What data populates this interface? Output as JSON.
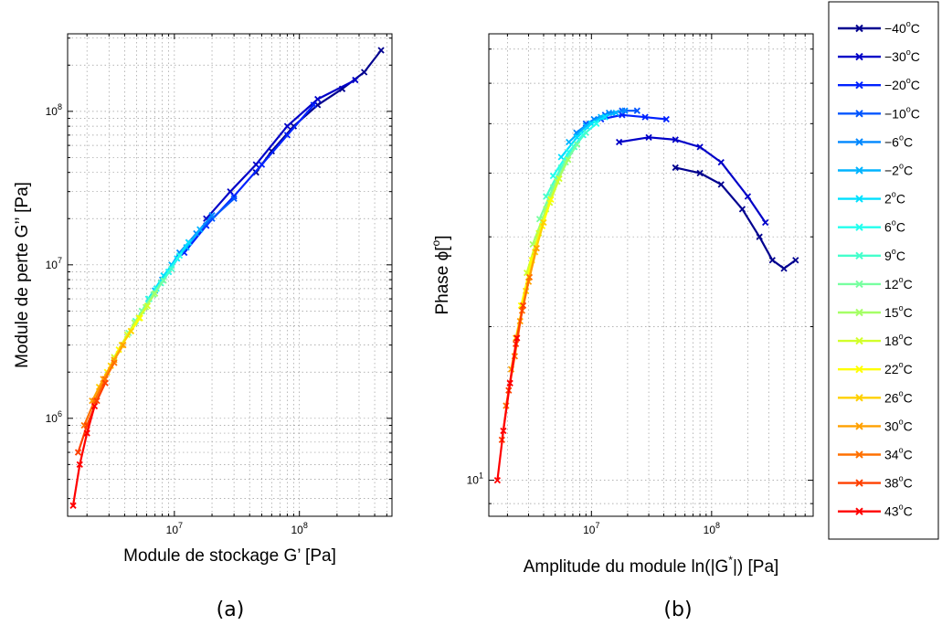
{
  "figure": {
    "caption_a": "(a)",
    "caption_b": "(b)"
  },
  "legend": {
    "entries": [
      {
        "label": "−40°C",
        "base": "−40",
        "unit": "C",
        "color": "#00008f"
      },
      {
        "label": "−30°C",
        "base": "−30",
        "unit": "C",
        "color": "#0000c8"
      },
      {
        "label": "−20°C",
        "base": "−20",
        "unit": "C",
        "color": "#0022ff"
      },
      {
        "label": "−10°C",
        "base": "−10",
        "unit": "C",
        "color": "#0055ff"
      },
      {
        "label": "−6°C",
        "base": "−6",
        "unit": "C",
        "color": "#0088ff"
      },
      {
        "label": "−2°C",
        "base": "−2",
        "unit": "C",
        "color": "#00b4ff"
      },
      {
        "label": "2°C",
        "base": "2",
        "unit": "C",
        "color": "#00e0ff"
      },
      {
        "label": "6°C",
        "base": "6",
        "unit": "C",
        "color": "#22ffee"
      },
      {
        "label": "9°C",
        "base": "9",
        "unit": "C",
        "color": "#44ffcc"
      },
      {
        "label": "12°C",
        "base": "12",
        "unit": "C",
        "color": "#77ffa0"
      },
      {
        "label": "15°C",
        "base": "15",
        "unit": "C",
        "color": "#a5ff66"
      },
      {
        "label": "18°C",
        "base": "18",
        "unit": "C",
        "color": "#d2ff2a"
      },
      {
        "label": "22°C",
        "base": "22",
        "unit": "C",
        "color": "#ffff00"
      },
      {
        "label": "26°C",
        "base": "26",
        "unit": "C",
        "color": "#ffd000"
      },
      {
        "label": "30°C",
        "base": "30",
        "unit": "C",
        "color": "#ffa000"
      },
      {
        "label": "34°C",
        "base": "34",
        "unit": "C",
        "color": "#ff7000"
      },
      {
        "label": "38°C",
        "base": "38",
        "unit": "C",
        "color": "#ff4000"
      },
      {
        "label": "43°C",
        "base": "43",
        "unit": "C",
        "color": "#ff0000"
      }
    ]
  },
  "chart_data": [
    {
      "type": "line",
      "panel": "(a)",
      "xlabel": "Module de stockage G’ [Pa]",
      "ylabel": "Module de perte G’’ [Pa]",
      "xscale": "log",
      "yscale": "log",
      "xlim": [
        1400000,
        550000000
      ],
      "ylim": [
        230000,
        320000000
      ],
      "xticks": [
        {
          "value": 10000000,
          "label": "10",
          "exp": "7"
        },
        {
          "value": 100000000,
          "label": "10",
          "exp": "8"
        }
      ],
      "yticks": [
        {
          "value": 1000000,
          "label": "10",
          "exp": "6"
        },
        {
          "value": 10000000,
          "label": "10",
          "exp": "7"
        },
        {
          "value": 100000000,
          "label": "10",
          "exp": "8"
        }
      ],
      "grid": true,
      "series": [
        {
          "name": "−40°C",
          "x": [
            45000000,
            60000000,
            90000000,
            140000000,
            220000000,
            330000000,
            450000000
          ],
          "y": [
            40000000,
            55000000,
            80000000,
            110000000,
            140000000,
            180000000,
            250000000
          ]
        },
        {
          "name": "−30°C",
          "x": [
            18000000,
            28000000,
            45000000,
            80000000,
            140000000,
            280000000
          ],
          "y": [
            20000000,
            30000000,
            45000000,
            80000000,
            120000000,
            160000000
          ]
        },
        {
          "name": "−20°C",
          "x": [
            12000000,
            18000000,
            30000000,
            50000000,
            80000000,
            130000000
          ],
          "y": [
            12000000,
            18000000,
            28000000,
            45000000,
            70000000,
            110000000
          ]
        },
        {
          "name": "−10°C",
          "x": [
            9000000,
            13000000,
            20000000,
            30000000
          ],
          "y": [
            9000000,
            14000000,
            20000000,
            27000000
          ]
        },
        {
          "name": "−6°C",
          "x": [
            8000000,
            11000000,
            15000000,
            20000000
          ],
          "y": [
            8000000,
            12000000,
            16000000,
            21000000
          ]
        },
        {
          "name": "−2°C",
          "x": [
            7000000,
            9500000,
            12500000,
            16000000
          ],
          "y": [
            6800000,
            10000000,
            13000000,
            17000000
          ]
        },
        {
          "name": "2°C",
          "x": [
            6200000,
            8200000,
            10500000,
            13000000
          ],
          "y": [
            6000000,
            8500000,
            11000000,
            14000000
          ]
        },
        {
          "name": "6°C",
          "x": [
            5500000,
            7200000,
            9000000,
            11000000
          ],
          "y": [
            5000000,
            7000000,
            9000000,
            11500000
          ]
        },
        {
          "name": "9°C",
          "x": [
            4900000,
            6300000,
            7800000,
            9500000
          ],
          "y": [
            4300000,
            6000000,
            7600000,
            9400000
          ]
        },
        {
          "name": "12°C",
          "x": [
            4300000,
            5500000,
            6800000,
            8200000
          ],
          "y": [
            3600000,
            5000000,
            6400000,
            7900000
          ]
        },
        {
          "name": "15°C",
          "x": [
            3800000,
            4800000,
            5900000,
            7000000
          ],
          "y": [
            3000000,
            4200000,
            5300000,
            6500000
          ]
        },
        {
          "name": "18°C",
          "x": [
            3300000,
            4200000,
            5200000,
            6100000
          ],
          "y": [
            2500000,
            3500000,
            4500000,
            5400000
          ]
        },
        {
          "name": "22°C",
          "x": [
            2900000,
            3600000,
            4500000,
            5300000
          ],
          "y": [
            2000000,
            2800000,
            3700000,
            4500000
          ]
        },
        {
          "name": "26°C",
          "x": [
            2500000,
            3100000,
            3800000,
            4500000
          ],
          "y": [
            1600000,
            2200000,
            3000000,
            3700000
          ]
        },
        {
          "name": "30°C",
          "x": [
            2200000,
            2700000,
            3300000,
            3900000
          ],
          "y": [
            1300000,
            1800000,
            2400000,
            3000000
          ]
        },
        {
          "name": "34°C",
          "x": [
            1900000,
            2300000,
            2800000,
            3300000
          ],
          "y": [
            900000,
            1300000,
            1800000,
            2300000
          ]
        },
        {
          "name": "38°C",
          "x": [
            1700000,
            2000000,
            2400000,
            2800000
          ],
          "y": [
            600000,
            900000,
            1300000,
            1700000
          ]
        },
        {
          "name": "43°C",
          "x": [
            1550000,
            1750000,
            2000000,
            2300000
          ],
          "y": [
            270000,
            500000,
            800000,
            1200000
          ]
        }
      ]
    },
    {
      "type": "line",
      "panel": "(b)",
      "xlabel": "Amplitude du module ln(|G*|) [Pa]",
      "ylabel": "Phase ϕ[°]",
      "xscale": "log",
      "yscale": "log",
      "xlim": [
        1400000,
        700000000
      ],
      "ylim": [
        8.5,
        75
      ],
      "xticks": [
        {
          "value": 10000000,
          "label": "10",
          "exp": "7"
        },
        {
          "value": 100000000,
          "label": "10",
          "exp": "8"
        }
      ],
      "yticks": [
        {
          "value": 10,
          "label": "10",
          "exp": "1"
        }
      ],
      "grid": true,
      "series": [
        {
          "name": "−40°C",
          "x": [
            50000000,
            80000000,
            120000000,
            180000000,
            250000000,
            320000000,
            400000000,
            500000000
          ],
          "y": [
            41,
            40,
            38,
            34,
            30,
            27,
            26,
            27
          ]
        },
        {
          "name": "−30°C",
          "x": [
            17000000,
            30000000,
            50000000,
            80000000,
            120000000,
            200000000,
            280000000
          ],
          "y": [
            46,
            47,
            46.5,
            45,
            42,
            36,
            32
          ]
        },
        {
          "name": "−20°C",
          "x": [
            12000000,
            18000000,
            28000000,
            42000000
          ],
          "y": [
            51,
            52,
            51.5,
            51
          ]
        },
        {
          "name": "−10°C",
          "x": [
            9000000,
            13000000,
            18000000,
            24000000
          ],
          "y": [
            50,
            52,
            53,
            53
          ]
        },
        {
          "name": "−6°C",
          "x": [
            7500000,
            10500000,
            14000000,
            19000000
          ],
          "y": [
            48,
            51,
            52.5,
            53
          ]
        },
        {
          "name": "−2°C",
          "x": [
            6500000,
            9000000,
            12000000,
            16000000
          ],
          "y": [
            46,
            49.5,
            51.5,
            52.5
          ]
        },
        {
          "name": "2°C",
          "x": [
            5600000,
            7600000,
            10000000,
            13000000
          ],
          "y": [
            43,
            47,
            50,
            51.5
          ]
        },
        {
          "name": "6°C",
          "x": [
            4800000,
            6500000,
            8500000,
            11000000
          ],
          "y": [
            39.5,
            44,
            47.5,
            50
          ]
        },
        {
          "name": "9°C",
          "x": [
            4200000,
            5600000,
            7200000,
            9000000
          ],
          "y": [
            36,
            41,
            45,
            48
          ]
        },
        {
          "name": "12°C",
          "x": [
            3700000,
            4800000,
            6100000,
            7600000
          ],
          "y": [
            32.5,
            37.5,
            42,
            45.5
          ]
        },
        {
          "name": "15°C",
          "x": [
            3250000,
            4200000,
            5200000,
            6400000
          ],
          "y": [
            29,
            34,
            38.5,
            42.5
          ]
        },
        {
          "name": "18°C",
          "x": [
            2900000,
            3650000,
            4500000,
            5400000
          ],
          "y": [
            25.5,
            30.5,
            35,
            39
          ]
        },
        {
          "name": "22°C",
          "x": [
            2600000,
            3200000,
            3900000,
            4600000
          ],
          "y": [
            22,
            27,
            31.5,
            35.5
          ]
        },
        {
          "name": "26°C",
          "x": [
            2350000,
            2850000,
            3400000,
            4000000
          ],
          "y": [
            19,
            23.5,
            28,
            32
          ]
        },
        {
          "name": "30°C",
          "x": [
            2150000,
            2550000,
            3000000,
            3500000
          ],
          "y": [
            16.5,
            20.5,
            24.5,
            28.5
          ]
        },
        {
          "name": "34°C",
          "x": [
            1950000,
            2300000,
            2650000,
            3050000
          ],
          "y": [
            14,
            17.5,
            21.5,
            25
          ]
        },
        {
          "name": "38°C",
          "x": [
            1800000,
            2050000,
            2350000,
            2700000
          ],
          "y": [
            12,
            15,
            18.5,
            22
          ]
        },
        {
          "name": "43°C",
          "x": [
            1650000,
            1850000,
            2100000,
            2400000
          ],
          "y": [
            10,
            12.5,
            15.5,
            19
          ]
        }
      ]
    }
  ]
}
